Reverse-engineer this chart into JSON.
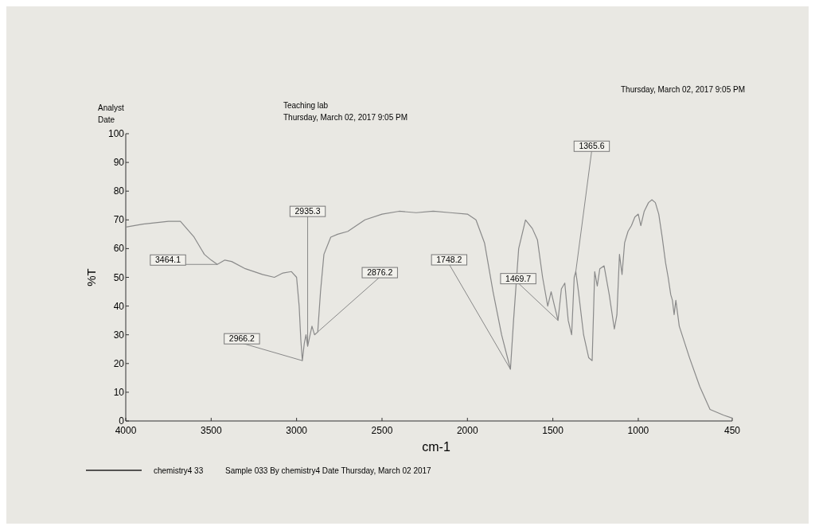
{
  "chart_data": {
    "type": "line",
    "title": "Teaching lab",
    "subtitle": "Thursday, March 02, 2017 9:05 PM",
    "xlabel": "cm-1",
    "ylabel": "%T",
    "xlim": [
      4000,
      450
    ],
    "xticks": [
      4000,
      3500,
      3000,
      2500,
      2000,
      1500,
      1000,
      450
    ],
    "ylim": [
      0,
      100
    ],
    "yticks": [
      0,
      10,
      20,
      30,
      40,
      50,
      60,
      70,
      80,
      90,
      100
    ],
    "grid": false,
    "legend": "bottom",
    "marker": "none",
    "line_style": "solid",
    "series": [
      {
        "name": "chemistry4 33",
        "color": "#8a8a8a",
        "x": [
          4000,
          3900,
          3750,
          3680,
          3600,
          3540,
          3500,
          3464.1,
          3420,
          3380,
          3300,
          3200,
          3130,
          3080,
          3030,
          3000,
          2985,
          2975,
          2966.2,
          2955,
          2945,
          2935.3,
          2910,
          2895,
          2876.2,
          2860,
          2840,
          2800,
          2760,
          2700,
          2600,
          2500,
          2400,
          2300,
          2200,
          2100,
          2000,
          1950,
          1900,
          1850,
          1800,
          1748.2,
          1730,
          1700,
          1660,
          1620,
          1590,
          1560,
          1530,
          1510,
          1490,
          1469.7,
          1450,
          1430,
          1410,
          1390,
          1375,
          1365.6,
          1350,
          1320,
          1290,
          1270,
          1255,
          1240,
          1225,
          1200,
          1170,
          1140,
          1125,
          1110,
          1095,
          1080,
          1060,
          1040,
          1020,
          1000,
          985,
          965,
          940,
          920,
          900,
          880,
          860,
          840,
          825,
          810,
          800,
          790,
          780,
          760,
          700,
          640,
          580,
          500,
          450
        ],
        "values": [
          67.5,
          68.5,
          69.5,
          69.5,
          64,
          58,
          56,
          54.5,
          56,
          55.5,
          53,
          51,
          50,
          51.5,
          52,
          50,
          40,
          28,
          21,
          27,
          30,
          26,
          33,
          30,
          31,
          45,
          58,
          64,
          65,
          66,
          70,
          72,
          73,
          72.5,
          73,
          72.5,
          72,
          70,
          62,
          45,
          30,
          18,
          35,
          60,
          70,
          67,
          63,
          50,
          40,
          45,
          40,
          35,
          46,
          48,
          35,
          30,
          50,
          52,
          45,
          30,
          22,
          21,
          52,
          47,
          53,
          54,
          44,
          32,
          37,
          58,
          51,
          62,
          66,
          68,
          71,
          72,
          68,
          73,
          76,
          77,
          76,
          72,
          64,
          55,
          50,
          44,
          42,
          37,
          42,
          33,
          22,
          12,
          4,
          2,
          1
        ]
      }
    ],
    "annotations": [
      "Analyst",
      "Date",
      "Thursday, March 02, 2017 9:05 PM",
      "Sample 033 By chemistry4 Date Thursday, March 02 2017",
      {
        "text": "3464.1",
        "x": 3464.1,
        "y": 54.5
      },
      {
        "text": "2966.2",
        "x": 2966.2,
        "y": 21
      },
      {
        "text": "2935.3",
        "x": 2935.3,
        "y": 26
      },
      {
        "text": "2876.2",
        "x": 2876.2,
        "y": 31
      },
      {
        "text": "1748.2",
        "x": 1748.2,
        "y": 18
      },
      {
        "text": "1469.7",
        "x": 1469.7,
        "y": 35
      },
      {
        "text": "1365.6",
        "x": 1365.6,
        "y": 52
      }
    ]
  }
}
